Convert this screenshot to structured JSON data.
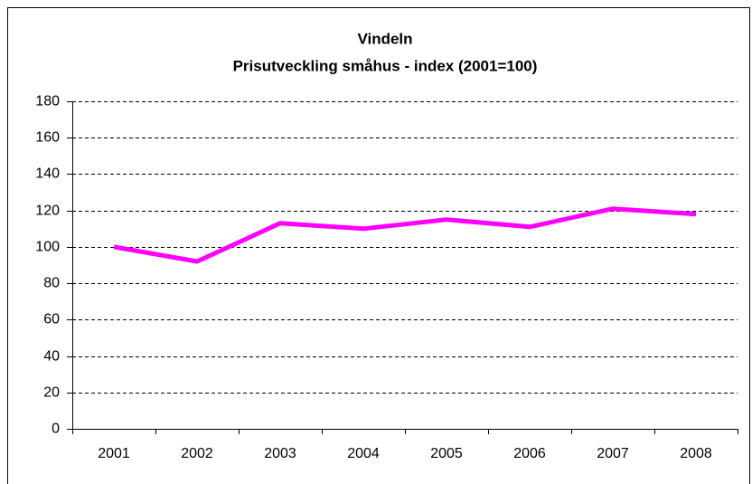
{
  "chart_data": {
    "type": "line",
    "title": "Vindeln",
    "subtitle": "Prisutveckling småhus - index (2001=100)",
    "categories": [
      "2001",
      "2002",
      "2003",
      "2004",
      "2005",
      "2006",
      "2007",
      "2008"
    ],
    "values": [
      100,
      92,
      113,
      110,
      115,
      111,
      121,
      118
    ],
    "color": "#ff00ff",
    "ylim": [
      0,
      180
    ],
    "yticks": [
      0,
      20,
      40,
      60,
      80,
      100,
      120,
      140,
      160,
      180
    ],
    "grid": true
  }
}
